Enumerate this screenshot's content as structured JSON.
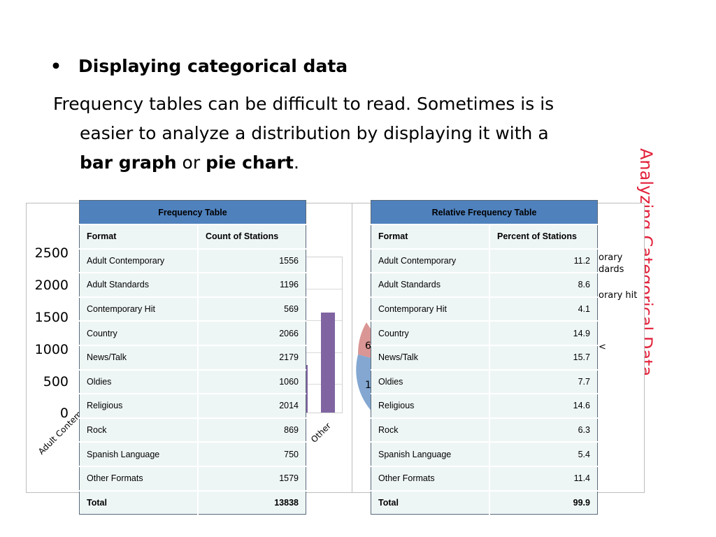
{
  "slide": {
    "bullet": "Displaying categorical data",
    "para_1": "Frequency tables can be difficult to read.  Sometimes is is",
    "para_2": "easier to analyze a distribution by displaying it with a",
    "bar_graph": "bar graph",
    "or_word": " or ",
    "pie_chart": "pie chart",
    "period": ".",
    "side_title": "Analyzing Categorical Data"
  },
  "bar_panel": {
    "y_ticks": [
      "2500",
      "2000",
      "1500",
      "1000",
      "500",
      "0"
    ],
    "x_label_first": "Adult Contem",
    "x_label_last": "Other",
    "bar_color": "#8064a2"
  },
  "pie_panel": {
    "legend_1": "orary",
    "legend_2": "dards",
    "legend_3": "orary hit",
    "label_6": "6",
    "label_1": "1",
    "dash": "<"
  },
  "freq_table": {
    "title": "Frequency Table",
    "col_format": "Format",
    "col_count": "Count of Stations",
    "rows": [
      {
        "format": "Adult Contemporary",
        "value": "1556"
      },
      {
        "format": "Adult Standards",
        "value": "1196"
      },
      {
        "format": "Contemporary Hit",
        "value": "569"
      },
      {
        "format": "Country",
        "value": "2066"
      },
      {
        "format": "News/Talk",
        "value": "2179"
      },
      {
        "format": "Oldies",
        "value": "1060"
      },
      {
        "format": "Religious",
        "value": "2014"
      },
      {
        "format": "Rock",
        "value": "869"
      },
      {
        "format": "Spanish Language",
        "value": "750"
      },
      {
        "format": "Other Formats",
        "value": "1579"
      }
    ],
    "total_label": "Total",
    "total_value": "13838"
  },
  "rel_table": {
    "title": "Relative Frequency Table",
    "col_format": "Format",
    "col_percent": "Percent of Stations",
    "rows": [
      {
        "format": "Adult Contemporary",
        "value": "11.2"
      },
      {
        "format": "Adult Standards",
        "value": "8.6"
      },
      {
        "format": "Contemporary Hit",
        "value": "4.1"
      },
      {
        "format": "Country",
        "value": "14.9"
      },
      {
        "format": "News/Talk",
        "value": "15.7"
      },
      {
        "format": "Oldies",
        "value": "7.7"
      },
      {
        "format": "Religious",
        "value": "14.6"
      },
      {
        "format": "Rock",
        "value": "6.3"
      },
      {
        "format": "Spanish Language",
        "value": "5.4"
      },
      {
        "format": "Other Formats",
        "value": "11.4"
      }
    ],
    "total_label": "Total",
    "total_value": "99.9"
  }
}
